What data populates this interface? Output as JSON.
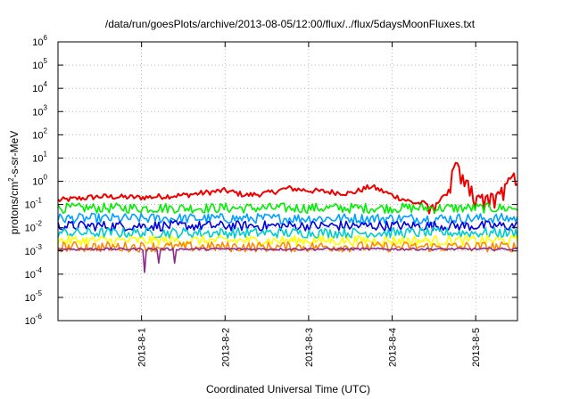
{
  "chart_data": {
    "type": "line",
    "title": "/data/run/goesPlots/archive/2013-08-05/12:00/flux/../flux/5daysMoonFluxes.txt",
    "xlabel": "Coordinated Universal Time (UTC)",
    "ylabel": {
      "base": "protons/cm",
      "sup": "2",
      "rest": "-s-sr-MeV"
    },
    "yscale": "log",
    "ylim": [
      1e-06,
      1000000.0
    ],
    "yticks": [
      {
        "base": "10",
        "exp": "6"
      },
      {
        "base": "10",
        "exp": "5"
      },
      {
        "base": "10",
        "exp": "4"
      },
      {
        "base": "10",
        "exp": "3"
      },
      {
        "base": "10",
        "exp": "2"
      },
      {
        "base": "10",
        "exp": "1"
      },
      {
        "base": "10",
        "exp": "0"
      },
      {
        "base": "10",
        "exp": "-1"
      },
      {
        "base": "10",
        "exp": "-2"
      },
      {
        "base": "10",
        "exp": "-3"
      },
      {
        "base": "10",
        "exp": "-4"
      },
      {
        "base": "10",
        "exp": "-5"
      },
      {
        "base": "10",
        "exp": "-6"
      }
    ],
    "xlim": [
      "2013-07-31 00:00",
      "2013-08-05 12:00"
    ],
    "xticks": [
      "2013-8-1",
      "2013-8-2",
      "2013-8-3",
      "2013-8-4",
      "2013-8-5"
    ],
    "grid": true,
    "series": [
      {
        "color": "#ee0000",
        "level": 0.2,
        "anchors": [
          [
            "2013-07-31 00:00",
            0.15
          ],
          [
            "2013-07-31 12:00",
            0.22
          ],
          [
            "2013-08-01 00:00",
            0.2
          ],
          [
            "2013-08-01 12:00",
            0.25
          ],
          [
            "2013-08-02 00:00",
            0.4
          ],
          [
            "2013-08-02 06:00",
            0.25
          ],
          [
            "2013-08-02 12:00",
            0.3
          ],
          [
            "2013-08-02 18:00",
            0.5
          ],
          [
            "2013-08-03 00:00",
            0.4
          ],
          [
            "2013-08-03 12:00",
            0.3
          ],
          [
            "2013-08-03 18:00",
            0.6
          ],
          [
            "2013-08-04 00:00",
            0.25
          ],
          [
            "2013-08-04 06:00",
            0.12
          ],
          [
            "2013-08-04 12:00",
            0.1
          ],
          [
            "2013-08-04 16:00",
            0.3
          ],
          [
            "2013-08-04 18:00",
            8
          ],
          [
            "2013-08-05 00:00",
            0.25
          ],
          [
            "2013-08-05 06:00",
            0.25
          ],
          [
            "2013-08-05 12:00",
            3
          ]
        ]
      },
      {
        "color": "#00ee00",
        "level": 0.07
      },
      {
        "color": "#00a0ff",
        "level": 0.025
      },
      {
        "color": "#0000dd",
        "level": 0.012
      },
      {
        "color": "#00cccc",
        "level": 0.006
      },
      {
        "color": "#ffff00",
        "level": 0.0028
      },
      {
        "color": "#ff8800",
        "level": 0.0015
      },
      {
        "color": "#8b2a8b",
        "level": 0.0012
      }
    ]
  }
}
